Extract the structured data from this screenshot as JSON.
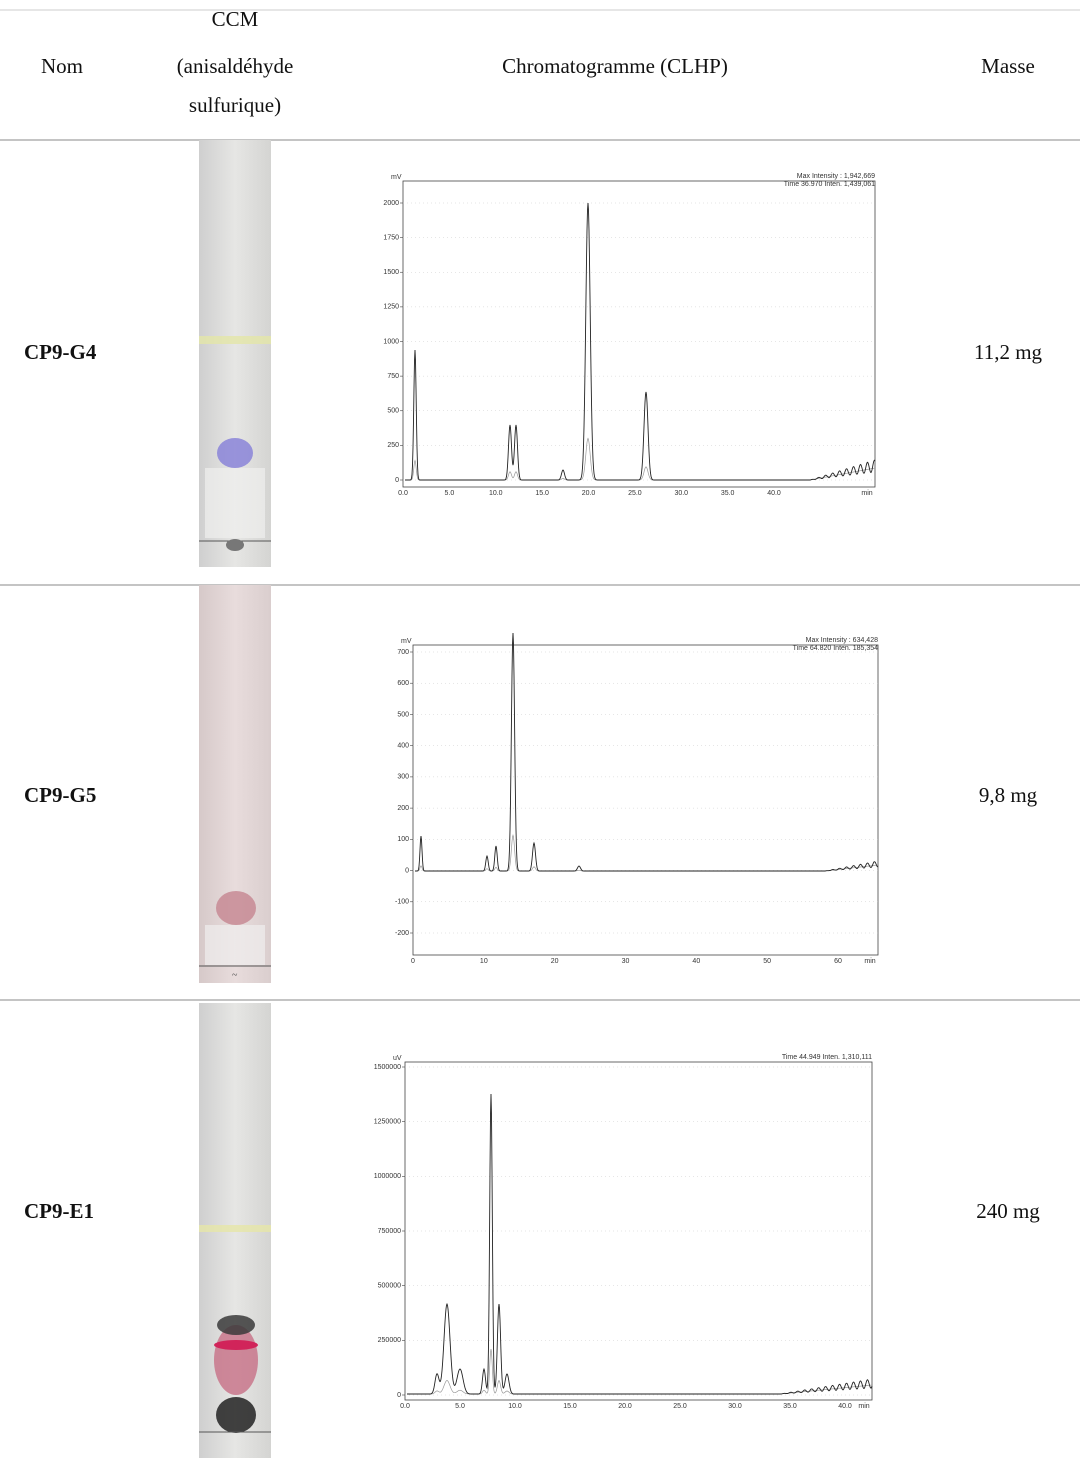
{
  "header": {
    "nom": "Nom",
    "ccm": [
      "CCM",
      "(anisaldéhyde",
      "sulfurique)"
    ],
    "chromatogramme": "Chromatogramme (CLHP)",
    "masse": "Masse"
  },
  "rows": [
    {
      "name": "CP9-G4",
      "mass": "11,2 mg",
      "chromatogram": {
        "unit": "mV",
        "info": [
          "Max Intensity : 1,942,669",
          "Time   36.970   Inten.     1,439,061"
        ],
        "yticks": [
          "0",
          "250",
          "500",
          "750",
          "1000",
          "1250",
          "1500",
          "1750",
          "2000"
        ],
        "xticks": [
          "0.0",
          "5.0",
          "10.0",
          "15.0",
          "20.0",
          "25.0",
          "30.0",
          "35.0",
          "40.0",
          "min"
        ]
      }
    },
    {
      "name": "CP9-G5",
      "mass": "9,8 mg",
      "chromatogram": {
        "unit": "mV",
        "info": [
          "Max Intensity : 634,428",
          "Time   64.820   Inten.     185,354"
        ],
        "yticks": [
          "-200",
          "-100",
          "0",
          "100",
          "200",
          "300",
          "400",
          "500",
          "600",
          "700"
        ],
        "xticks": [
          "0",
          "10",
          "20",
          "30",
          "40",
          "50",
          "60",
          "min"
        ]
      }
    },
    {
      "name": "CP9-E1",
      "mass": "240 mg",
      "chromatogram": {
        "unit": "uV",
        "info": [
          "Time   44.949   Inten.      1,310,111"
        ],
        "yticks": [
          "0",
          "250000",
          "500000",
          "750000",
          "1000000",
          "1250000",
          "1500000"
        ],
        "xticks": [
          "0.0",
          "5.0",
          "10.0",
          "15.0",
          "20.0",
          "25.0",
          "30.0",
          "35.0",
          "40.0",
          "min"
        ]
      }
    }
  ]
}
